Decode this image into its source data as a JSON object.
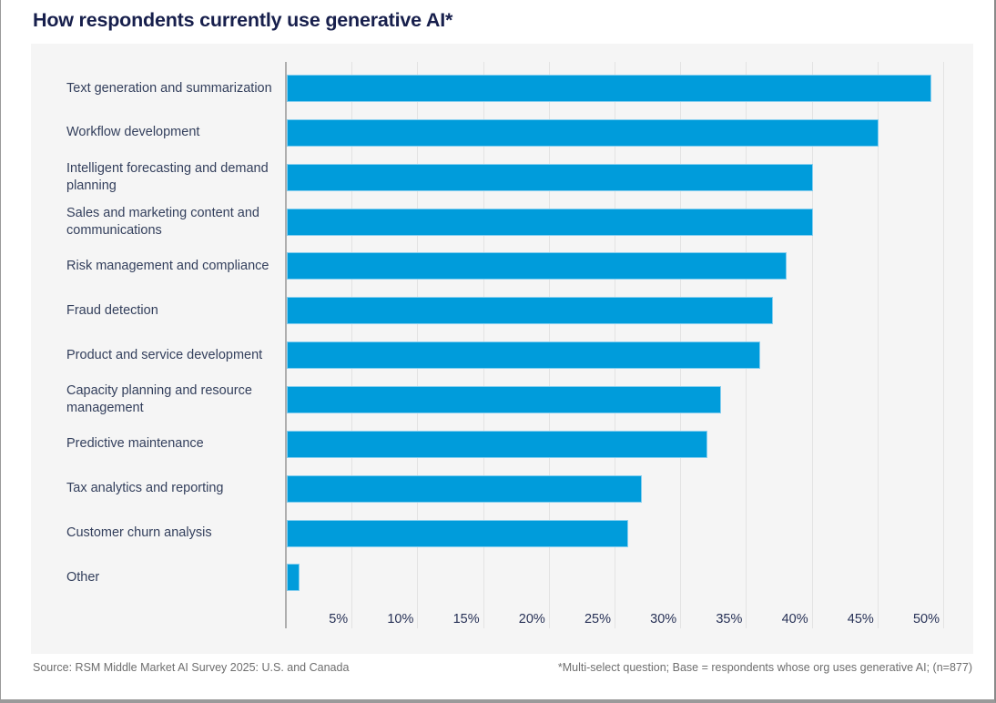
{
  "title": "How respondents currently use generative AI*",
  "footer": {
    "source": "Source: RSM Middle Market AI Survey 2025: U.S. and Canada",
    "note": "*Multi-select question; Base = respondents whose org uses generative AI; (n=877)"
  },
  "chart_data": {
    "type": "bar",
    "orientation": "horizontal",
    "title": "How respondents currently use generative AI*",
    "categories": [
      "Text generation and summarization",
      "Workflow development",
      "Intelligent forecasting and demand planning",
      "Sales and marketing content and communications",
      "Risk management and compliance",
      "Fraud detection",
      "Product and service development",
      "Capacity planning and resource management",
      "Predictive maintenance",
      "Tax analytics and reporting",
      "Customer churn analysis",
      "Other"
    ],
    "values": [
      49,
      45,
      40,
      40,
      38,
      37,
      36,
      33,
      32,
      27,
      26,
      1
    ],
    "unit": "%",
    "xlim": [
      0,
      52
    ],
    "x_tick_values": [
      5,
      10,
      15,
      20,
      25,
      30,
      35,
      40,
      45,
      50
    ],
    "x_tick_labels": [
      "5%",
      "10%",
      "15%",
      "20%",
      "25%",
      "30%",
      "35%",
      "40%",
      "45%",
      "50%"
    ],
    "grid": "vertical",
    "legend": "none",
    "colors": {
      "bar": "#009cdb",
      "bar_edge": "#85ceef",
      "panel_background": "#f5f5f5",
      "gridline": "#e3e3e3",
      "axis_line": "#aeaeae",
      "title_text": "#171f4c",
      "category_text": "#333f5c",
      "tick_text": "#283257",
      "footer_text": "#6e6e6e"
    }
  }
}
